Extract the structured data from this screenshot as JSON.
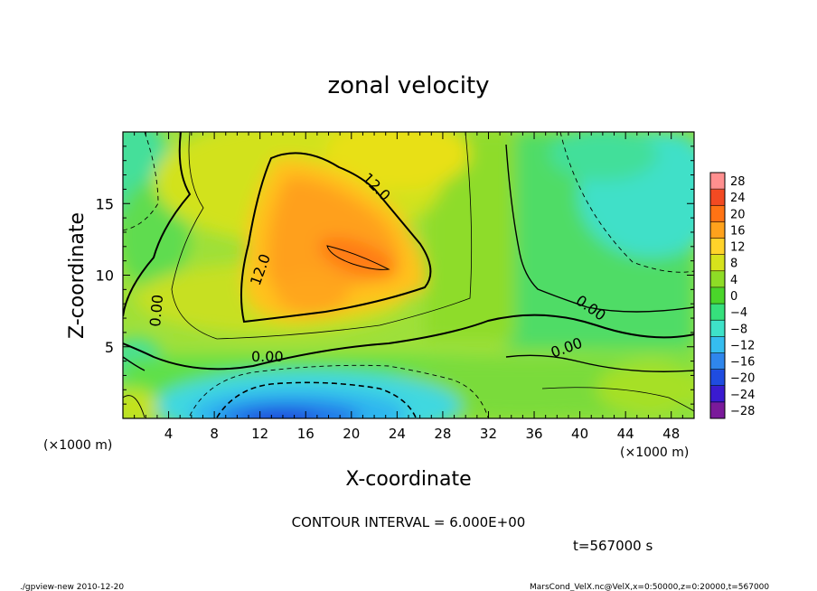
{
  "chart_data": {
    "type": "heatmap",
    "title": "zonal velocity",
    "xlabel": "X-coordinate",
    "ylabel": "Z-coordinate",
    "x_unit": "(×1000 m)",
    "x_unit_right": "(×1000 m)",
    "x_ticks": [
      4,
      8,
      12,
      16,
      20,
      24,
      28,
      32,
      36,
      40,
      44,
      48
    ],
    "y_ticks": [
      5,
      10,
      15
    ],
    "xlim": [
      0,
      50
    ],
    "ylim": [
      0,
      20
    ],
    "contour_interval_text": "CONTOUR INTERVAL = 6.000E+00",
    "time_text": "t=567000 s",
    "contour_labels": [
      "12.0",
      "12.0",
      "0.00",
      "0.00",
      "0.00",
      "0.00"
    ],
    "colorbar": {
      "labels": [
        "28",
        "24",
        "20",
        "16",
        "12",
        "8",
        "4",
        "0",
        "−4",
        "−8",
        "−12",
        "−16",
        "−20",
        "−24",
        "−28"
      ],
      "colors": [
        "#7a1a9a",
        "#3a1bd0",
        "#1f4ce0",
        "#2f86ec",
        "#35bdef",
        "#3ee2c8",
        "#36e07c",
        "#4ad52a",
        "#8edc26",
        "#d6e21c",
        "#ffd32a",
        "#ffa21c",
        "#ff7314",
        "#f24a22",
        "#ff8f8f"
      ]
    },
    "field_description": "zonal velocity field"
  },
  "footer": {
    "left": "./gpview-new   2010-12-20",
    "right": "MarsCond_VelX.nc@VelX,x=0:50000,z=0:20000,t=567000"
  }
}
